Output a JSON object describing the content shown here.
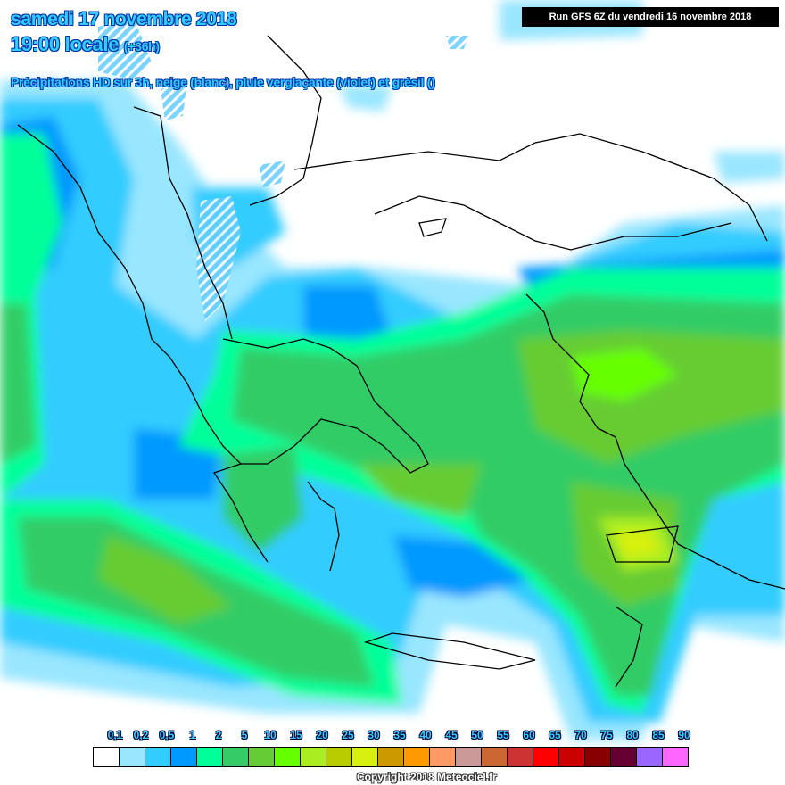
{
  "header": {
    "date": "samedi 17 novembre 2018",
    "time": "19:00 locale",
    "lead": "(+36h)",
    "description": "Précipitations HD sur 3h, neige (blanc), pluie verglaçante (violet) et grésil ()",
    "run": "Run GFS 6Z du vendredi 16 novembre 2018"
  },
  "legend": {
    "labels": [
      "0,1",
      "0,2",
      "0,5",
      "1",
      "2",
      "5",
      "10",
      "15",
      "20",
      "25",
      "30",
      "35",
      "40",
      "45",
      "50",
      "55",
      "60",
      "65",
      "70",
      "75",
      "80",
      "85",
      "90"
    ],
    "colors": [
      "#ffffff",
      "#99e6ff",
      "#33ccff",
      "#0099ff",
      "#00ff99",
      "#33cc66",
      "#66cc33",
      "#66ff00",
      "#aaee22",
      "#b8cc00",
      "#d8f010",
      "#cc9900",
      "#ff9900",
      "#ff9966",
      "#cc9999",
      "#cc6633",
      "#cc3333",
      "#ff0000",
      "#cc0000",
      "#880000",
      "#660033",
      "#9966ff",
      "#ff66ff"
    ]
  },
  "copyright": "Copyright 2018 Meteociel.fr"
}
